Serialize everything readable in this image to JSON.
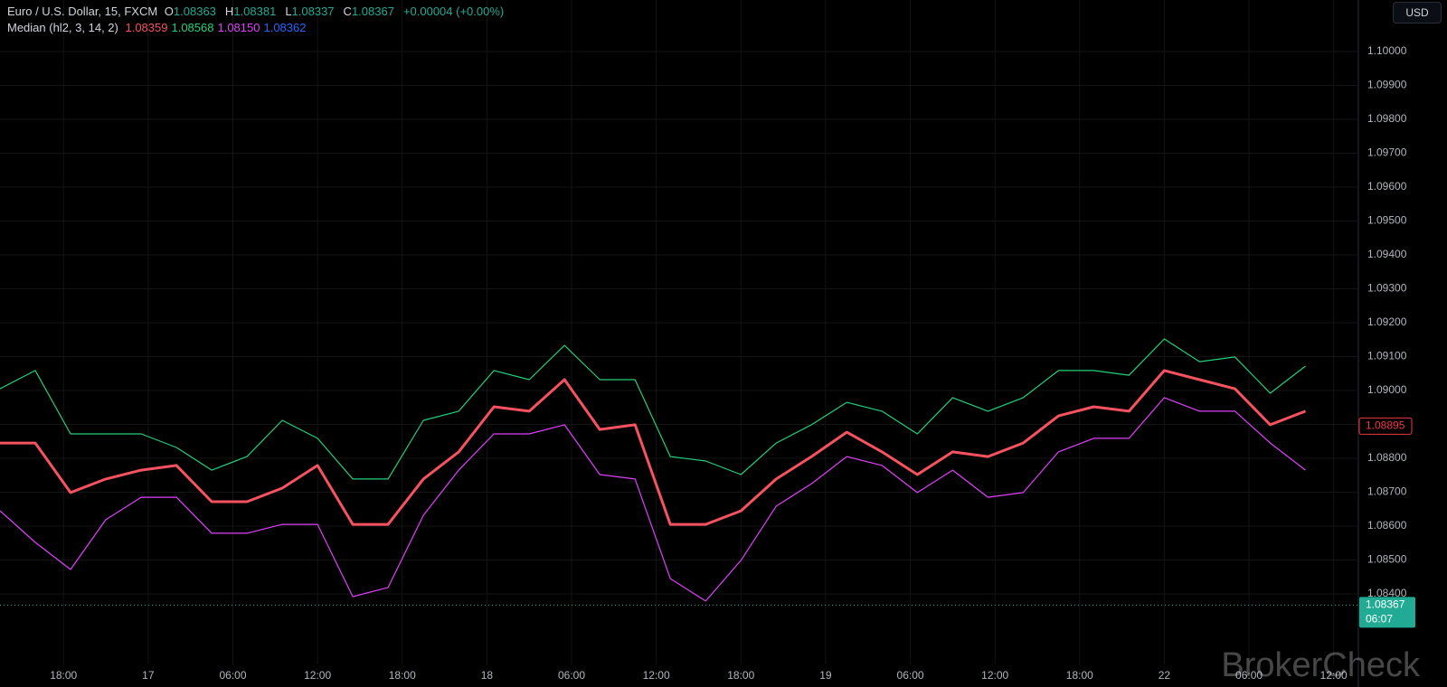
{
  "chart_data": {
    "type": "line",
    "symbol": "Euro / U.S. Dollar, 15, FXCM",
    "ohlc": [
      {
        "label": "O",
        "value": "1.08363"
      },
      {
        "label": "H",
        "value": "1.08381"
      },
      {
        "label": "L",
        "value": "1.08337"
      },
      {
        "label": "C",
        "value": "1.08367"
      }
    ],
    "change": "+0.00004 (+0.00%)",
    "indicator": {
      "name": "Median (hl2, 3, 14, 2)",
      "values": [
        "1.08359",
        "1.08568",
        "1.08150",
        "1.08362"
      ],
      "colors": [
        "#f7525f",
        "#22d07a",
        "#e040fb",
        "#2962ff"
      ]
    },
    "currency": "USD",
    "watermark": "BrokerCheck",
    "x": [
      0,
      10,
      20,
      30,
      40,
      50,
      60,
      70,
      80,
      90,
      100,
      110,
      120,
      130,
      140,
      150,
      160,
      170,
      180,
      190,
      200,
      210,
      220,
      230,
      240,
      250,
      260,
      270,
      280,
      290,
      300,
      310,
      320,
      330,
      340,
      350,
      360,
      370
    ],
    "xlim": [
      0,
      385
    ],
    "xticks": [
      {
        "value": 18,
        "label": "18:00"
      },
      {
        "value": 42,
        "label": "17"
      },
      {
        "value": 66,
        "label": "06:00"
      },
      {
        "value": 90,
        "label": "12:00"
      },
      {
        "value": 114,
        "label": "18:00"
      },
      {
        "value": 138,
        "label": "18"
      },
      {
        "value": 162,
        "label": "06:00"
      },
      {
        "value": 186,
        "label": "12:00"
      },
      {
        "value": 210,
        "label": "18:00"
      },
      {
        "value": 234,
        "label": "19"
      },
      {
        "value": 258,
        "label": "06:00"
      },
      {
        "value": 282,
        "label": "12:00"
      },
      {
        "value": 306,
        "label": "18:00"
      },
      {
        "value": 330,
        "label": "22"
      },
      {
        "value": 354,
        "label": "06:00"
      },
      {
        "value": 378,
        "label": "12:00"
      }
    ],
    "ylim": [
      1.08192,
      1.10152
    ],
    "yticks": [
      {
        "value": 1.084,
        "label": "1.08400"
      },
      {
        "value": 1.085,
        "label": "1.08500"
      },
      {
        "value": 1.086,
        "label": "1.08600"
      },
      {
        "value": 1.087,
        "label": "1.08700"
      },
      {
        "value": 1.088,
        "label": "1.08800"
      },
      {
        "value": 1.089,
        "label": "1.08900"
      },
      {
        "value": 1.09,
        "label": "1.09000"
      },
      {
        "value": 1.091,
        "label": "1.09100"
      },
      {
        "value": 1.092,
        "label": "1.09200"
      },
      {
        "value": 1.093,
        "label": "1.09300"
      },
      {
        "value": 1.094,
        "label": "1.09400"
      },
      {
        "value": 1.095,
        "label": "1.09500"
      },
      {
        "value": 1.096,
        "label": "1.09600"
      },
      {
        "value": 1.097,
        "label": "1.09700"
      },
      {
        "value": 1.098,
        "label": "1.09800"
      },
      {
        "value": 1.099,
        "label": "1.09900"
      },
      {
        "value": 1.1,
        "label": "1.10000"
      }
    ],
    "grid": true,
    "series": [
      {
        "color": "#22d07a",
        "width": 1.2,
        "values": [
          1.09005,
          1.09059,
          1.08872,
          1.08872,
          1.08872,
          1.08832,
          1.08765,
          1.08805,
          1.08912,
          1.08859,
          1.08739,
          1.08739,
          1.08912,
          1.08939,
          1.09059,
          1.09032,
          1.09133,
          1.09032,
          1.09032,
          1.08805,
          1.08792,
          1.08752,
          1.08845,
          1.08899,
          1.08965,
          1.08939,
          1.08872,
          1.08979,
          1.08939,
          1.08979,
          1.09059,
          1.09059,
          1.09045,
          1.09152,
          1.09085,
          1.09099,
          1.08992,
          1.09072
        ]
      },
      {
        "color": "#e040fb",
        "width": 1.2,
        "values": [
          1.08645,
          1.08552,
          1.08472,
          1.08619,
          1.08685,
          1.08685,
          1.08579,
          1.08579,
          1.08605,
          1.08605,
          1.08392,
          1.08419,
          1.08632,
          1.08765,
          1.08872,
          1.08872,
          1.08899,
          1.08752,
          1.08739,
          1.08445,
          1.08379,
          1.08499,
          1.08659,
          1.08725,
          1.08805,
          1.08779,
          1.08699,
          1.08765,
          1.08685,
          1.08699,
          1.08819,
          1.08859,
          1.08859,
          1.08979,
          1.08939,
          1.08939,
          1.08845,
          1.08765
        ]
      },
      {
        "color": "#f7525f",
        "width": 3,
        "values": [
          1.08845,
          1.08845,
          1.08699,
          1.08739,
          1.08765,
          1.08779,
          1.08672,
          1.08672,
          1.08712,
          1.08779,
          1.08605,
          1.08605,
          1.08739,
          1.08819,
          1.08952,
          1.08939,
          1.09032,
          1.08885,
          1.08899,
          1.08605,
          1.08605,
          1.08645,
          1.08739,
          1.08805,
          1.08877,
          1.08819,
          1.08752,
          1.08819,
          1.08805,
          1.08845,
          1.08925,
          1.08952,
          1.08939,
          1.09059,
          1.09032,
          1.09005,
          1.08899,
          1.08939
        ]
      }
    ],
    "price_labels": [
      {
        "value": 1.08895,
        "color": "#f23645",
        "style": "outline"
      },
      {
        "value": 1.08367,
        "time": "06:07",
        "color": "#22ab94",
        "style": "filled"
      }
    ]
  }
}
